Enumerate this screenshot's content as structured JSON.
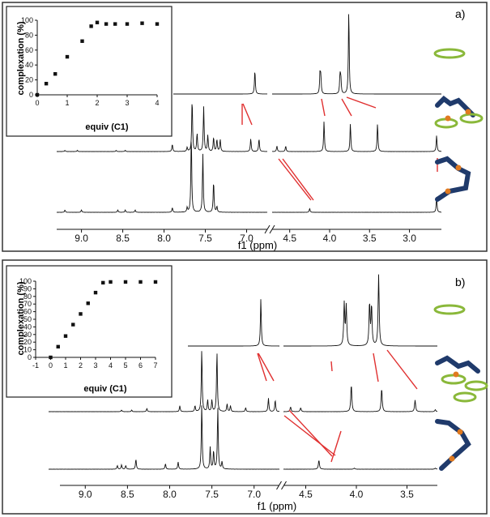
{
  "chart_data": [
    {
      "type": "line",
      "panel_label": "a)",
      "xlabel": "f1 (ppm)",
      "x_ticks": [
        "9.0",
        "8.5",
        "8.0",
        "7.5",
        "7.0",
        "4.5",
        "4.0",
        "3.5",
        "3.0"
      ],
      "x_segments": [
        [
          9.3,
          6.75
        ],
        [
          4.72,
          2.6
        ]
      ],
      "spectra": [
        {
          "name": "",
          "baseline": 0.0,
          "peaks": [
            [
              6.9,
              0.45
            ],
            [
              4.12,
              0.4
            ],
            [
              4.11,
              0.3
            ],
            [
              3.87,
              0.35
            ],
            [
              3.86,
              0.3
            ],
            [
              3.76,
              1.6
            ]
          ]
        },
        {
          "name": "",
          "baseline": 0.0,
          "peaks": [
            [
              9.2,
              0.03
            ],
            [
              9.05,
              0.03
            ],
            [
              8.58,
              0.03
            ],
            [
              8.47,
              0.03
            ],
            [
              7.9,
              0.18
            ],
            [
              7.72,
              0.1
            ],
            [
              7.66,
              1.3
            ],
            [
              7.6,
              0.45
            ],
            [
              7.52,
              1.1
            ],
            [
              7.47,
              0.4
            ],
            [
              7.4,
              0.35
            ],
            [
              7.36,
              0.3
            ],
            [
              7.32,
              0.3
            ],
            [
              6.95,
              0.32
            ],
            [
              6.85,
              0.32
            ],
            [
              4.66,
              0.14
            ],
            [
              4.55,
              0.14
            ],
            [
              4.07,
              0.75
            ],
            [
              3.74,
              0.7
            ],
            [
              3.4,
              0.7
            ],
            [
              2.66,
              0.4
            ]
          ]
        },
        {
          "name": "",
          "baseline": 0.0,
          "peaks": [
            [
              9.2,
              0.06
            ],
            [
              9.0,
              0.06
            ],
            [
              8.56,
              0.06
            ],
            [
              8.47,
              0.06
            ],
            [
              8.35,
              0.06
            ],
            [
              7.9,
              0.12
            ],
            [
              7.72,
              0.12
            ],
            [
              7.67,
              2.0
            ],
            [
              7.53,
              1.5
            ],
            [
              7.4,
              0.8
            ],
            [
              7.36,
              0.15
            ],
            [
              4.25,
              0.1
            ],
            [
              2.66,
              0.4
            ]
          ]
        }
      ],
      "inset": {
        "type": "scatter",
        "xlabel": "equiv (C1)",
        "ylabel": "complexation (%)",
        "xlim": [
          0,
          4
        ],
        "ylim": [
          0,
          100
        ],
        "x_ticks": [
          0,
          1,
          2,
          3,
          4
        ],
        "y_ticks": [
          0,
          20,
          40,
          60,
          80,
          100
        ],
        "points": [
          [
            0,
            0
          ],
          [
            0.3,
            15
          ],
          [
            0.6,
            28
          ],
          [
            1.0,
            51
          ],
          [
            1.5,
            72
          ],
          [
            1.8,
            92
          ],
          [
            2.0,
            97
          ],
          [
            2.3,
            95
          ],
          [
            2.6,
            95
          ],
          [
            3.0,
            95
          ],
          [
            3.5,
            96
          ],
          [
            4.0,
            95
          ]
        ]
      }
    },
    {
      "type": "line",
      "panel_label": "b)",
      "xlabel": "f1 (ppm)",
      "x_ticks": [
        "9.0",
        "8.5",
        "8.0",
        "7.5",
        "7.0",
        "4.5",
        "4.0",
        "3.5"
      ],
      "x_segments": [
        [
          9.3,
          6.7
        ],
        [
          4.72,
          3.2
        ]
      ],
      "spectra": [
        {
          "name": "",
          "baseline": 0.0,
          "peaks": [
            [
              6.92,
              0.9
            ],
            [
              4.12,
              0.8
            ],
            [
              4.1,
              0.75
            ],
            [
              3.87,
              0.8
            ],
            [
              3.85,
              0.75
            ],
            [
              3.78,
              1.35
            ]
          ]
        },
        {
          "name": "",
          "baseline": 0.0,
          "peaks": [
            [
              8.57,
              0.04
            ],
            [
              8.45,
              0.04
            ],
            [
              8.27,
              0.08
            ],
            [
              7.88,
              0.15
            ],
            [
              7.7,
              0.15
            ],
            [
              7.62,
              1.6
            ],
            [
              7.55,
              0.3
            ],
            [
              7.5,
              0.3
            ],
            [
              7.44,
              1.55
            ],
            [
              7.32,
              0.2
            ],
            [
              7.28,
              0.15
            ],
            [
              7.1,
              0.1
            ],
            [
              6.83,
              0.35
            ],
            [
              6.75,
              0.3
            ],
            [
              4.65,
              0.12
            ],
            [
              4.55,
              0.1
            ],
            [
              4.05,
              0.7
            ],
            [
              3.75,
              0.6
            ],
            [
              3.42,
              0.3
            ],
            [
              3.22,
              0.05
            ]
          ]
        },
        {
          "name": "",
          "baseline": 0.0,
          "peaks": [
            [
              8.62,
              0.1
            ],
            [
              8.57,
              0.12
            ],
            [
              8.52,
              0.1
            ],
            [
              8.4,
              0.28
            ],
            [
              8.05,
              0.15
            ],
            [
              7.9,
              0.2
            ],
            [
              7.62,
              1.8
            ],
            [
              7.52,
              0.6
            ],
            [
              7.48,
              0.5
            ],
            [
              7.43,
              1.7
            ],
            [
              7.38,
              0.2
            ],
            [
              4.37,
              0.25
            ],
            [
              4.02,
              0.03
            ],
            [
              3.22,
              0.03
            ]
          ]
        }
      ],
      "inset": {
        "type": "scatter",
        "xlabel": "equiv (C1)",
        "ylabel": "complexation (%)",
        "xlim": [
          -1,
          7
        ],
        "ylim": [
          0,
          100
        ],
        "x_ticks": [
          -1,
          0,
          1,
          2,
          3,
          4,
          5,
          6,
          7
        ],
        "y_ticks": [
          0,
          10,
          20,
          30,
          40,
          50,
          60,
          70,
          80,
          90,
          100
        ],
        "points": [
          [
            0,
            0
          ],
          [
            0.5,
            14
          ],
          [
            1.0,
            28
          ],
          [
            1.5,
            43
          ],
          [
            2.0,
            57
          ],
          [
            2.5,
            71
          ],
          [
            3.0,
            85
          ],
          [
            3.5,
            98
          ],
          [
            4.0,
            99
          ],
          [
            5.0,
            99
          ],
          [
            6.0,
            99
          ],
          [
            7.0,
            99
          ]
        ]
      }
    }
  ]
}
